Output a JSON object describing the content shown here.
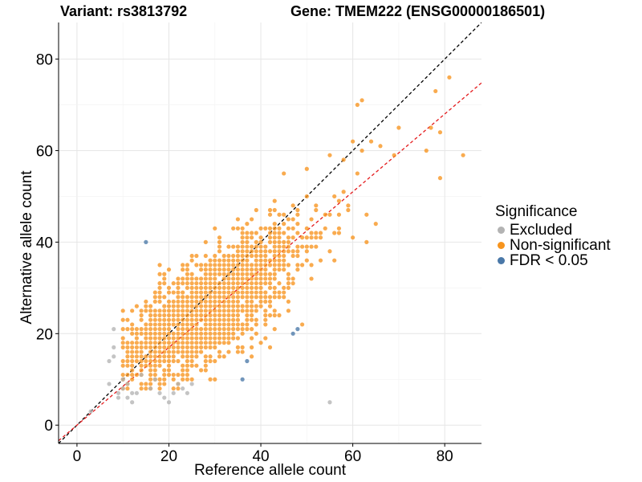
{
  "header": {
    "variant": "Variant: rs3813792",
    "gene": "Gene: TMEM222 (ENSG00000186501)"
  },
  "legend": {
    "title": "Significance",
    "items": [
      {
        "label": "Excluded",
        "color": "#b3b3b3"
      },
      {
        "label": "Non-significant",
        "color": "#f7941d"
      },
      {
        "label": "FDR < 0.05",
        "color": "#4a78a8"
      }
    ]
  },
  "chart_data": {
    "type": "scatter",
    "xlabel": "Reference allele count",
    "ylabel": "Alternative allele count",
    "xlim": [
      -4,
      88
    ],
    "ylim": [
      -4,
      88
    ],
    "x_ticks": [
      0,
      20,
      40,
      60,
      80
    ],
    "y_ticks": [
      0,
      20,
      40,
      60,
      80
    ],
    "grid": true,
    "legend_position": "right",
    "reference_lines": [
      {
        "name": "y = x",
        "slope": 1,
        "intercept": 0,
        "color": "#000000",
        "dash": true
      },
      {
        "name": "fit",
        "slope": 0.85,
        "intercept": 0,
        "color": "#e41a1c",
        "dash": true
      }
    ],
    "series": [
      {
        "name": "Excluded",
        "color": "#b3b3b3",
        "points": [
          [
            3,
            3
          ],
          [
            7,
            9
          ],
          [
            7,
            14
          ],
          [
            8,
            15
          ],
          [
            8,
            21
          ],
          [
            9,
            7
          ],
          [
            9,
            6
          ],
          [
            10,
            8
          ],
          [
            11,
            6
          ],
          [
            11,
            9
          ],
          [
            12,
            7
          ],
          [
            13,
            7
          ],
          [
            12,
            5
          ],
          [
            14,
            11
          ],
          [
            16,
            8
          ],
          [
            17,
            10
          ],
          [
            18,
            7
          ],
          [
            19,
            6
          ],
          [
            20,
            5
          ],
          [
            21,
            7
          ],
          [
            22,
            9
          ],
          [
            23,
            8
          ],
          [
            24,
            7
          ],
          [
            25,
            9
          ],
          [
            55,
            5
          ],
          [
            8,
            17
          ],
          [
            10,
            10
          ]
        ]
      },
      {
        "name": "Non-significant",
        "color": "#f7941d",
        "points": []
      },
      {
        "name": "FDR < 0.05",
        "color": "#4a78a8",
        "points": [
          [
            15,
            40
          ],
          [
            36,
            10
          ],
          [
            37,
            14
          ],
          [
            47,
            20
          ],
          [
            48,
            21
          ]
        ]
      }
    ]
  }
}
